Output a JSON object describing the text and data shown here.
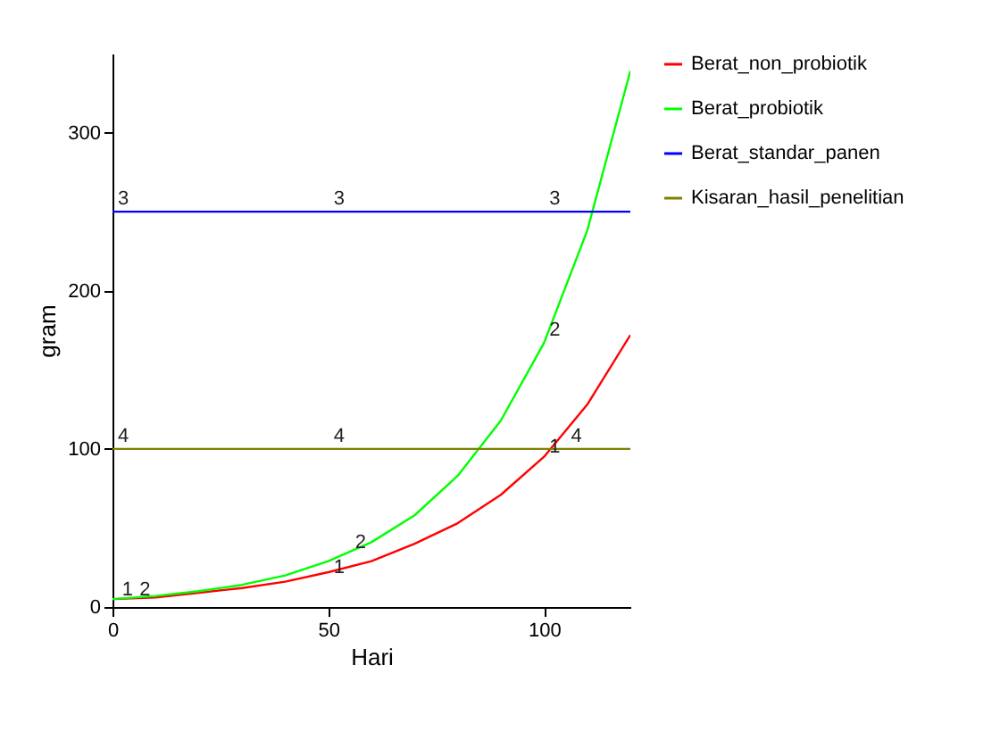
{
  "chart_data": {
    "type": "line",
    "xlabel": "Hari",
    "ylabel": "gram",
    "x": [
      0,
      10,
      20,
      30,
      40,
      50,
      60,
      70,
      80,
      90,
      100,
      110,
      120
    ],
    "series": [
      {
        "name": "Berat_non_probiotik",
        "color": "#ff0000",
        "values": [
          5,
          6,
          9,
          12,
          16,
          22,
          29,
          40,
          53,
          71,
          95,
          128,
          172
        ]
      },
      {
        "name": "Berat_probiotik",
        "color": "#00ff00",
        "values": [
          5,
          7,
          10,
          14,
          20,
          29,
          41,
          58,
          83,
          118,
          167,
          238,
          339
        ]
      },
      {
        "name": "Berat_standar_panen",
        "color": "#0000ff",
        "values": [
          250,
          250,
          250,
          250,
          250,
          250,
          250,
          250,
          250,
          250,
          250,
          250,
          250
        ]
      },
      {
        "name": "Kisaran_hasil_penelitian",
        "color": "#808000",
        "values": [
          100,
          100,
          100,
          100,
          100,
          100,
          100,
          100,
          100,
          100,
          100,
          100,
          100
        ]
      }
    ],
    "annotations": [
      {
        "text": "1",
        "x": 1,
        "y": 3
      },
      {
        "text": "1",
        "x": 50,
        "y": 17
      },
      {
        "text": "1",
        "x": 100,
        "y": 93
      },
      {
        "text": "2",
        "x": 5,
        "y": 3
      },
      {
        "text": "2",
        "x": 55,
        "y": 33
      },
      {
        "text": "2",
        "x": 100,
        "y": 167
      },
      {
        "text": "3",
        "x": 0,
        "y": 250
      },
      {
        "text": "3",
        "x": 50,
        "y": 250
      },
      {
        "text": "3",
        "x": 100,
        "y": 250
      },
      {
        "text": "4",
        "x": 0,
        "y": 100
      },
      {
        "text": "4",
        "x": 50,
        "y": 100
      },
      {
        "text": "4",
        "x": 105,
        "y": 100
      }
    ],
    "xlim": [
      0,
      120
    ],
    "ylim": [
      0,
      350
    ],
    "xticks": [
      0,
      50,
      100
    ],
    "yticks": [
      0,
      100,
      200,
      300
    ],
    "legend": "right",
    "grid": false,
    "marker": "none"
  }
}
